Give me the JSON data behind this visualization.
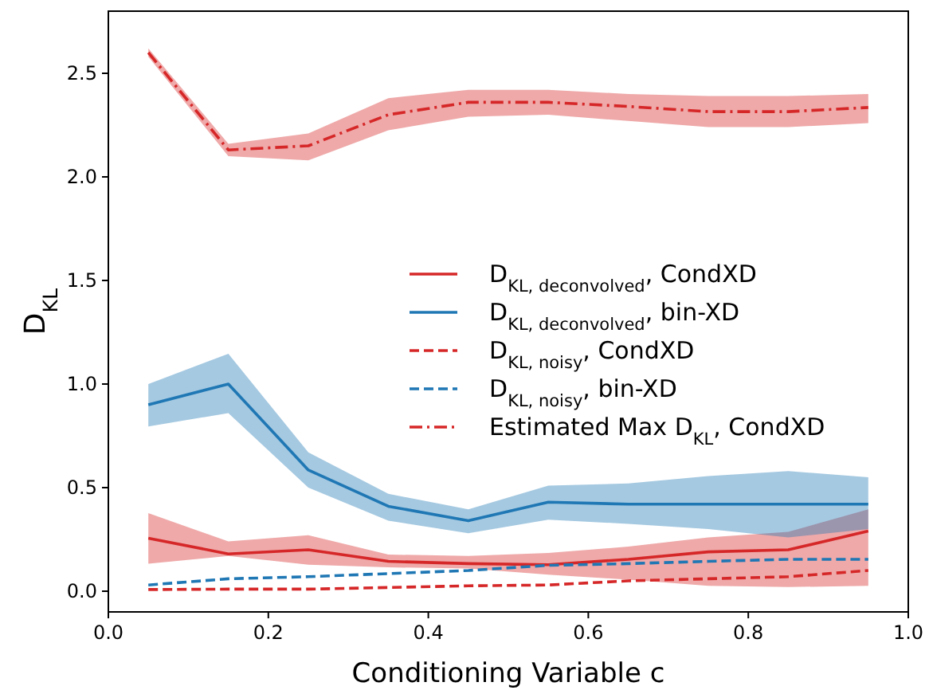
{
  "chart_data": {
    "type": "line",
    "xlabel": "Conditioning Variable c",
    "ylabel": "D$_{KL}$",
    "x": [
      0.05,
      0.15,
      0.25,
      0.35,
      0.45,
      0.55,
      0.65,
      0.75,
      0.85,
      0.95
    ],
    "xlim": [
      0,
      1
    ],
    "xticks": [
      {
        "value": 0,
        "label": "0.0"
      },
      {
        "value": 0.2,
        "label": "0.2"
      },
      {
        "value": 0.4,
        "label": "0.4"
      },
      {
        "value": 0.6,
        "label": "0.6"
      },
      {
        "value": 0.8,
        "label": "0.8"
      },
      {
        "value": 1,
        "label": "1.0"
      }
    ],
    "ylim": [
      -0.1,
      2.8
    ],
    "yticks": [
      {
        "value": 0,
        "label": "0.0"
      },
      {
        "value": 0.5,
        "label": "0.5"
      },
      {
        "value": 1,
        "label": "1.0"
      },
      {
        "value": 1.5,
        "label": "1.5"
      },
      {
        "value": 2,
        "label": "2.0"
      },
      {
        "value": 2.5,
        "label": "2.5"
      }
    ],
    "grid": false,
    "legend": "right",
    "series": [
      {
        "name": "D$_{KL, deconvolved}$, CondXD",
        "color": "#d62728",
        "line_style": "solid",
        "values": [
          0.256,
          0.18,
          0.2,
          0.144,
          0.133,
          0.128,
          0.154,
          0.19,
          0.2,
          0.29
        ],
        "lower": [
          0.133,
          0.17,
          0.128,
          0.115,
          0.11,
          0.08,
          0.056,
          0.026,
          0.02,
          0.026
        ],
        "upper": [
          0.377,
          0.24,
          0.27,
          0.177,
          0.17,
          0.185,
          0.215,
          0.26,
          0.287,
          0.395
        ]
      },
      {
        "name": "D$_{KL, deconvolved}$, bin-XD",
        "color": "#1f77b4",
        "line_style": "solid",
        "values": [
          0.9,
          1.0,
          0.585,
          0.41,
          0.34,
          0.43,
          0.42,
          0.42,
          0.42,
          0.42
        ],
        "lower": [
          0.795,
          0.86,
          0.5,
          0.34,
          0.28,
          0.345,
          0.325,
          0.3,
          0.26,
          0.3
        ],
        "upper": [
          1.0,
          1.146,
          0.67,
          0.47,
          0.395,
          0.51,
          0.52,
          0.556,
          0.58,
          0.55
        ]
      },
      {
        "name": "D$_{KL, noisy}$, CondXD",
        "color": "#d62728",
        "line_style": "dashed",
        "values": [
          0.008,
          0.01,
          0.01,
          0.018,
          0.026,
          0.03,
          0.05,
          0.06,
          0.07,
          0.1
        ]
      },
      {
        "name": "D$_{KL, noisy}$, bin-XD",
        "color": "#1f77b4",
        "line_style": "dashed",
        "values": [
          0.03,
          0.06,
          0.07,
          0.085,
          0.1,
          0.125,
          0.133,
          0.144,
          0.154,
          0.154
        ]
      },
      {
        "name": "Estimated Max D$_{KL}$, CondXD",
        "color": "#d62728",
        "line_style": "dashdot",
        "values": [
          2.6,
          2.13,
          2.15,
          2.3,
          2.36,
          2.36,
          2.34,
          2.315,
          2.315,
          2.335
        ],
        "lower": [
          2.58,
          2.1,
          2.08,
          2.225,
          2.29,
          2.3,
          2.27,
          2.24,
          2.24,
          2.26
        ],
        "upper": [
          2.62,
          2.16,
          2.21,
          2.38,
          2.42,
          2.42,
          2.4,
          2.39,
          2.39,
          2.4
        ]
      }
    ]
  }
}
